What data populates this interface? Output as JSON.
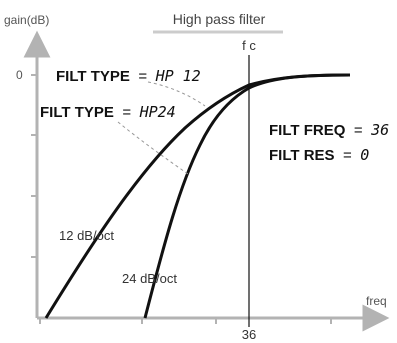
{
  "title": "High pass filter",
  "y_axis_label": "gain(dB)",
  "x_axis_label": "freq",
  "y_tick_zero": "0",
  "fc_label": "f c",
  "fc_tick": "36",
  "curve_12_label": "12 dB/oct",
  "curve_24_label": "24 dB/oct",
  "filt_type_1": {
    "label": "FILT TYPE",
    "eq": "=",
    "value": "HP 12"
  },
  "filt_type_2": {
    "label": "FILT TYPE",
    "eq": "=",
    "value": "HP24"
  },
  "filt_freq": {
    "label": "FILT FREQ",
    "eq": "=",
    "value": "36"
  },
  "filt_res": {
    "label": "FILT RES",
    "eq": "=",
    "value": "0"
  },
  "colors": {
    "axis": "#aaaaaa",
    "curve": "#111111",
    "leader": "#999999",
    "title_underline": "#cccccc"
  }
}
